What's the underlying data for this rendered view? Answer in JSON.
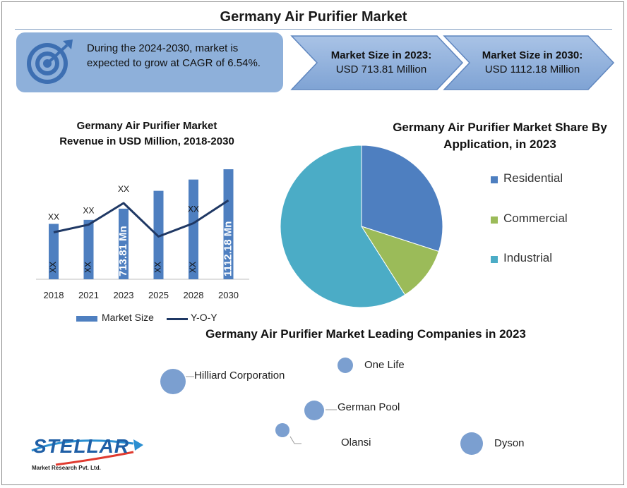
{
  "title": "Germany Air Purifier Market",
  "cagr_text": "During the 2024-2030, market is expected to grow at CAGR of 6.54%.",
  "market_2023": {
    "label": "Market Size in 2023:",
    "value": "USD 713.81 Million"
  },
  "market_2030": {
    "label": "Market Size in 2030:",
    "value": "USD 1112.18 Million"
  },
  "chart_data": [
    {
      "type": "bar",
      "title": "Germany Air Purifier Market Revenue in USD Million, 2018-2030",
      "categories": [
        "2018",
        "2021",
        "2023",
        "2025",
        "2028",
        "2030"
      ],
      "ylim": [
        0,
        1212
      ],
      "series": [
        {
          "name": "Market Size",
          "type": "bar",
          "values": [
            560,
            600,
            713.81,
            894,
            1008,
            1112.18
          ],
          "labels": [
            "XX",
            "XX",
            "713.81 Mn",
            "XX",
            "XX",
            "1112.18 Mn"
          ],
          "color": "#4e7fc0"
        },
        {
          "name": "Y-O-Y",
          "type": "line",
          "values": [
            475,
            552,
            770,
            432,
            567,
            798
          ],
          "color": "#1f3864"
        }
      ],
      "top_labels": [
        "XX",
        "XX",
        "XX",
        "",
        "XX",
        ""
      ],
      "legend": [
        "Market Size",
        "Y-O-Y"
      ],
      "legend_position": "bottom",
      "grid": false
    },
    {
      "type": "pie",
      "title": "Germany Air Purifier Market Share By Application, in 2023",
      "labels": [
        "Residential",
        "Commercial",
        "Industrial"
      ],
      "values": [
        30,
        11,
        59
      ],
      "colors": [
        "#4e7fc0",
        "#9bbb59",
        "#4bacc6"
      ],
      "legend_position": "right"
    }
  ],
  "companies_title": "Germany Air Purifier Market Leading Companies in 2023",
  "companies": [
    "Hilliard Corporation",
    "One Life",
    "German Pool",
    "Olansi",
    "Dyson"
  ],
  "logo": {
    "name": "STELLAR",
    "sub": "Market Research Pvt. Ltd."
  },
  "colors": {
    "box": "#8eb0da",
    "bar": "#4e7fc0",
    "line": "#1f3864",
    "bubble": "#7b9fd0"
  }
}
